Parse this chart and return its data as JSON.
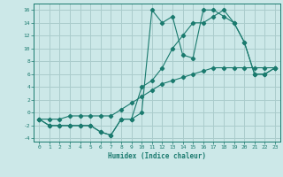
{
  "title": "",
  "xlabel": "Humidex (Indice chaleur)",
  "bg_color": "#cce8e8",
  "grid_color": "#aacccc",
  "line_color": "#1a7a6e",
  "xlim": [
    -0.5,
    23.5
  ],
  "ylim": [
    -4.5,
    17.0
  ],
  "xticks": [
    0,
    1,
    2,
    3,
    4,
    5,
    6,
    7,
    8,
    9,
    10,
    11,
    12,
    13,
    14,
    15,
    16,
    17,
    18,
    19,
    20,
    21,
    22,
    23
  ],
  "yticks": [
    -4,
    -2,
    0,
    2,
    4,
    6,
    8,
    10,
    12,
    14,
    16
  ],
  "line1_x": [
    0,
    1,
    2,
    3,
    4,
    5,
    6,
    7,
    8,
    9,
    10,
    11,
    12,
    13,
    14,
    15,
    16,
    17,
    18,
    19,
    20,
    21,
    22,
    23
  ],
  "line1_y": [
    -1,
    -2,
    -2,
    -2,
    -2,
    -2,
    -3,
    -3.5,
    -1,
    -1,
    0,
    16,
    14,
    15,
    9,
    8.5,
    16,
    16,
    15,
    14,
    11,
    6,
    6,
    7
  ],
  "line2_x": [
    0,
    1,
    2,
    3,
    4,
    5,
    6,
    7,
    8,
    9,
    10,
    11,
    12,
    13,
    14,
    15,
    16,
    17,
    18,
    19,
    20,
    21,
    22,
    23
  ],
  "line2_y": [
    -1,
    -2,
    -2,
    -2,
    -2,
    -2,
    -3,
    -3.5,
    -1,
    -1,
    4,
    5,
    7,
    10,
    12,
    14,
    14,
    15,
    16,
    14,
    11,
    6,
    6,
    7
  ],
  "line3_x": [
    0,
    1,
    2,
    3,
    4,
    5,
    6,
    7,
    8,
    9,
    10,
    11,
    12,
    13,
    14,
    15,
    16,
    17,
    18,
    19,
    20,
    21,
    22,
    23
  ],
  "line3_y": [
    -1,
    -1,
    -1,
    -0.5,
    -0.5,
    -0.5,
    -0.5,
    -0.5,
    0.5,
    1.5,
    2.5,
    3.5,
    4.5,
    5,
    5.5,
    6,
    6.5,
    7,
    7,
    7,
    7,
    7,
    7,
    7
  ]
}
